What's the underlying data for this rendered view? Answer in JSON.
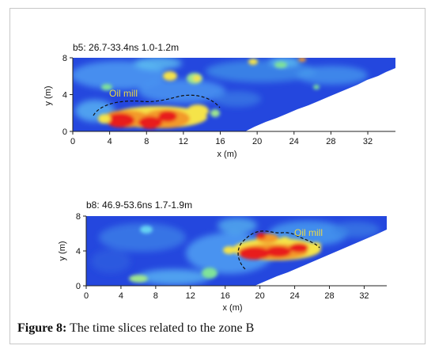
{
  "figure": {
    "caption_label": "Figure 8:",
    "caption_text": "The time slices related to the zone B"
  },
  "colors": {
    "deep_blue": "#1f3fe0",
    "mid_blue": "#3d8cf0",
    "cyan": "#63d8f5",
    "green": "#7fe39a",
    "yellow": "#f5e34a",
    "orange": "#f39a2a",
    "red": "#e81b1b",
    "annotation": "#e8d84a"
  },
  "chart_data": [
    {
      "type": "heatmap",
      "title": "b5:  26.7-33.4ns  1.0-1.2m",
      "xlabel": "x (m)",
      "ylabel": "y (m)",
      "xlim": [
        0,
        35
      ],
      "ylim": [
        0,
        8
      ],
      "xticks": [
        "0",
        "4",
        "8",
        "12",
        "16",
        "20",
        "24",
        "28",
        "32"
      ],
      "yticks": [
        "0",
        "4",
        "8"
      ],
      "annotation": "Oil mill",
      "anomalies": [
        {
          "x": 6.5,
          "y": 1.4,
          "level": "high"
        },
        {
          "x": 9.5,
          "y": 1.2,
          "level": "high"
        },
        {
          "x": 12.5,
          "y": 1.8,
          "level": "medium"
        },
        {
          "x": 10,
          "y": 5.5,
          "level": "medium"
        },
        {
          "x": 14,
          "y": 5.5,
          "level": "medium"
        },
        {
          "x": 20,
          "y": 7.2,
          "level": "medium"
        },
        {
          "x": 26,
          "y": 7.5,
          "level": "medium"
        }
      ]
    },
    {
      "type": "heatmap",
      "title": "b8:  46.9-53.6ns  1.7-1.9m",
      "xlabel": "x (m)",
      "ylabel": "y (m)",
      "xlim": [
        0,
        35
      ],
      "ylim": [
        0,
        8
      ],
      "xticks": [
        "0",
        "4",
        "8",
        "12",
        "16",
        "20",
        "24",
        "28",
        "32"
      ],
      "yticks": [
        "0",
        "4",
        "8"
      ],
      "annotation": "Oil mill",
      "anomalies": [
        {
          "x": 19,
          "y": 4,
          "level": "high"
        },
        {
          "x": 22,
          "y": 4.5,
          "level": "high"
        },
        {
          "x": 25,
          "y": 4.8,
          "level": "high"
        },
        {
          "x": 21,
          "y": 5.8,
          "level": "medium"
        }
      ]
    }
  ]
}
